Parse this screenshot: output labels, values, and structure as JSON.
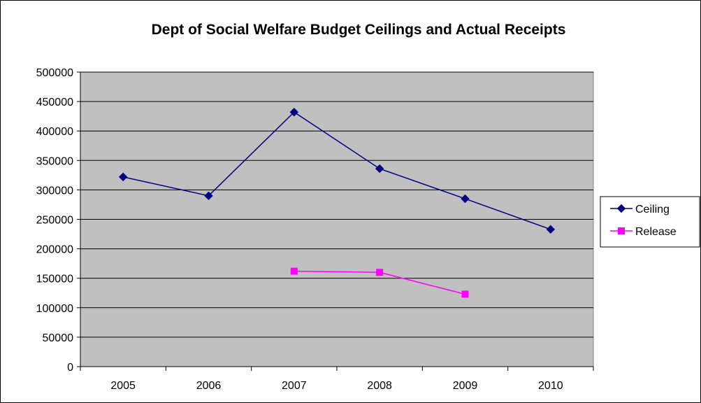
{
  "chart_data": {
    "type": "line",
    "title": "Dept of Social Welfare Budget Ceilings and Actual Receipts",
    "xlabel": "",
    "ylabel": "",
    "categories": [
      "2005",
      "2006",
      "2007",
      "2008",
      "2009",
      "2010"
    ],
    "ylim": [
      0,
      500000
    ],
    "yticks": [
      "0",
      "50000",
      "100000",
      "150000",
      "200000",
      "250000",
      "300000",
      "350000",
      "400000",
      "450000",
      "500000"
    ],
    "grid": true,
    "plot_background": "#C0C0C0",
    "legend_position": "right",
    "series": [
      {
        "name": "Ceiling",
        "color": "#000080",
        "marker": "diamond",
        "values": [
          322000,
          290000,
          432000,
          336000,
          285000,
          233000
        ]
      },
      {
        "name": "Release",
        "color": "#FF00FF",
        "marker": "square",
        "values": [
          null,
          null,
          162000,
          160000,
          123000,
          null
        ]
      }
    ]
  }
}
